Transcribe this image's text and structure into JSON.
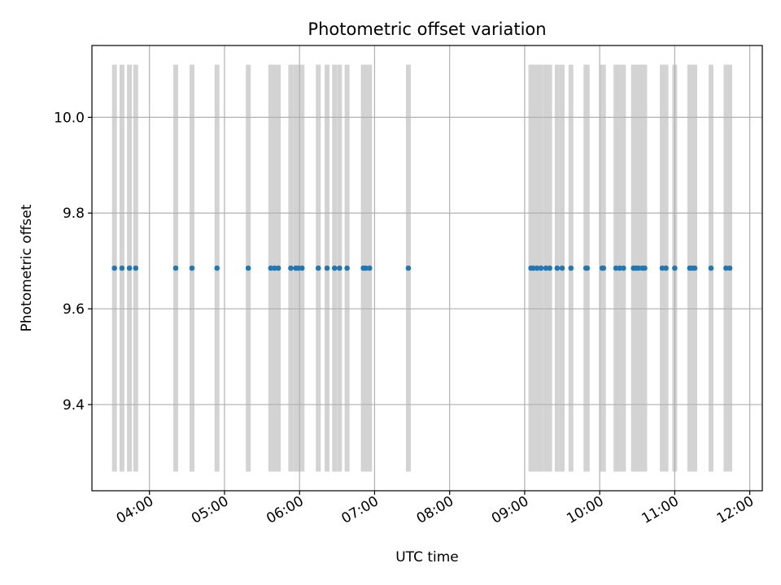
{
  "chart_data": {
    "type": "scatter",
    "title": "Photometric offset variation",
    "xlabel": "UTC time",
    "ylabel": "Photometric offset",
    "x_ticks": [
      "04:00",
      "05:00",
      "06:00",
      "07:00",
      "08:00",
      "09:00",
      "10:00",
      "11:00",
      "12:00"
    ],
    "y_ticks": [
      "9.4",
      "9.6",
      "9.8",
      "10.0"
    ],
    "xlim": [
      "03:14",
      "12:10"
    ],
    "ylim": [
      9.22,
      10.15
    ],
    "grid": true,
    "colors": {
      "points": "#1f77b4",
      "bands": "#d3d3d3",
      "grid": "#b0b0b0"
    },
    "bands_range": [
      9.26,
      10.11
    ],
    "x": [
      "03:32",
      "03:38",
      "03:44",
      "03:49",
      "04:21",
      "04:34",
      "04:54",
      "05:19",
      "05:37",
      "05:40",
      "05:43",
      "05:53",
      "05:57",
      "05:59",
      "06:02",
      "06:15",
      "06:22",
      "06:28",
      "06:32",
      "06:38",
      "06:51",
      "06:53",
      "06:56",
      "07:27",
      "09:05",
      "09:07",
      "09:10",
      "09:13",
      "09:17",
      "09:20",
      "09:26",
      "09:30",
      "09:37",
      "09:49",
      "09:50",
      "10:02",
      "10:03",
      "10:13",
      "10:16",
      "10:19",
      "10:27",
      "10:29",
      "10:31",
      "10:34",
      "10:36",
      "10:50",
      "10:53",
      "11:00",
      "11:12",
      "11:14",
      "11:16",
      "11:29",
      "11:41",
      "11:44"
    ],
    "y": [
      9.685,
      9.685,
      9.685,
      9.685,
      9.685,
      9.685,
      9.685,
      9.685,
      9.685,
      9.685,
      9.685,
      9.685,
      9.685,
      9.685,
      9.685,
      9.685,
      9.685,
      9.685,
      9.685,
      9.685,
      9.685,
      9.685,
      9.685,
      9.685,
      9.685,
      9.685,
      9.685,
      9.685,
      9.685,
      9.685,
      9.685,
      9.685,
      9.685,
      9.685,
      9.685,
      9.685,
      9.685,
      9.685,
      9.685,
      9.685,
      9.685,
      9.685,
      9.685,
      9.685,
      9.685,
      9.685,
      9.685,
      9.685,
      9.685,
      9.685,
      9.685,
      9.685,
      9.685,
      9.685
    ]
  }
}
